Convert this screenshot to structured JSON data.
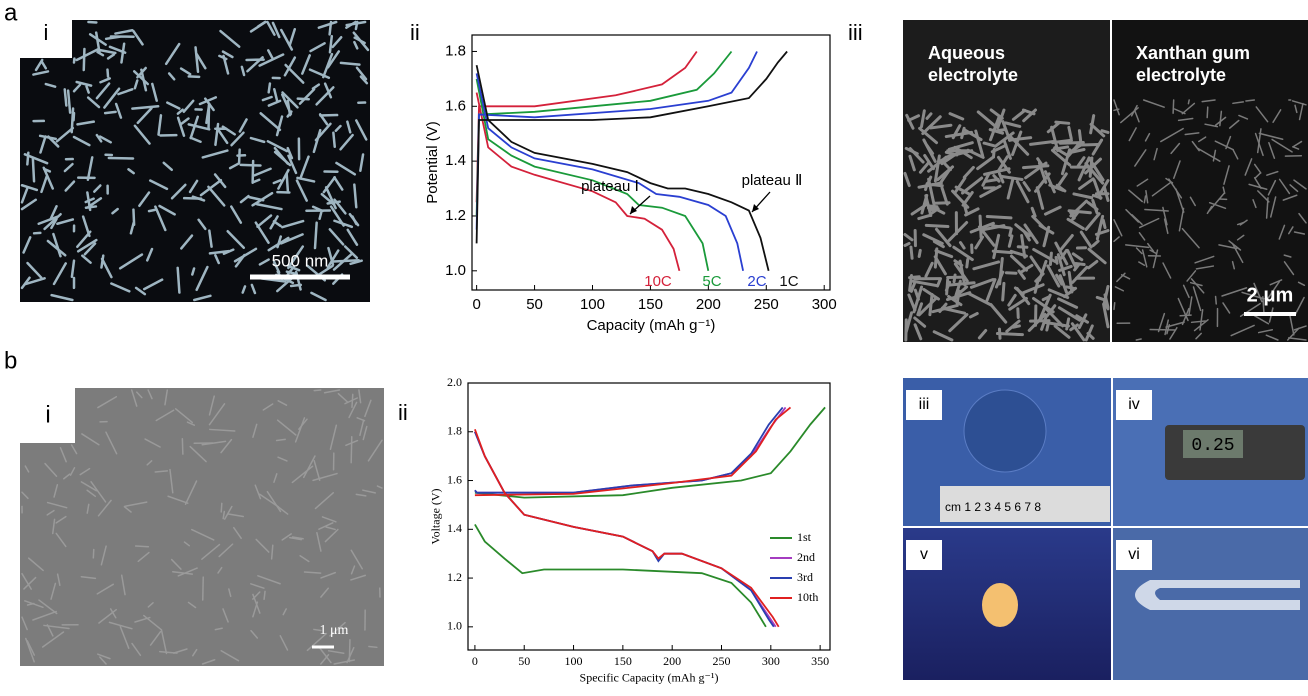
{
  "panels": {
    "a": {
      "label": "a",
      "i": {
        "label": "i",
        "scale_bar": "500 nm"
      },
      "ii": {
        "label": "ii"
      },
      "iii": {
        "label": "iii",
        "left_caption": [
          "Aqueous",
          "electrolyte"
        ],
        "right_caption": [
          "Xanthan gum",
          "electrolyte"
        ],
        "scale_bar": "2 μm"
      }
    },
    "b": {
      "label": "b",
      "i": {
        "label": "i",
        "scale_bar": "1 μm"
      },
      "ii": {
        "label": "ii"
      },
      "iii": {
        "label": "iii",
        "ruler": "cm  1   2   3   4   5   6   7   8"
      },
      "iv": {
        "label": "iv",
        "display": "0.25"
      },
      "v": {
        "label": "v"
      },
      "vi": {
        "label": "vi"
      }
    }
  },
  "chart_data": [
    {
      "type": "line",
      "ylabel": "Potential (V)",
      "xlabel": "Capacity (mAh g⁻¹)",
      "xlim": [
        -4,
        305
      ],
      "ylim": [
        0.93,
        1.86
      ],
      "xticks": [
        0,
        50,
        100,
        150,
        200,
        250,
        300
      ],
      "yticks": [
        {
          "value": 1.0,
          "label": "1.0"
        },
        {
          "value": 1.2,
          "label": "1.2"
        },
        {
          "value": 1.4,
          "label": "1.4"
        },
        {
          "value": 1.6,
          "label": "1.6"
        },
        {
          "value": 1.8,
          "label": "1.8"
        }
      ],
      "annotations": [
        "plateau Ⅰ",
        "plateau Ⅱ"
      ],
      "series": [
        {
          "name": "10C",
          "color": "#d4213a",
          "x": [
            0,
            2,
            50,
            120,
            160,
            180,
            190,
            null,
            0,
            10,
            30,
            50,
            100,
            120,
            130,
            145,
            160,
            170,
            175
          ],
          "values": [
            1.25,
            1.6,
            1.6,
            1.64,
            1.68,
            1.74,
            1.8,
            null,
            1.65,
            1.45,
            1.38,
            1.35,
            1.29,
            1.25,
            1.2,
            1.19,
            1.15,
            1.08,
            1.0
          ]
        },
        {
          "name": "5C",
          "color": "#1a9a3a",
          "x": [
            0,
            2,
            50,
            150,
            190,
            205,
            220,
            null,
            0,
            10,
            30,
            50,
            100,
            130,
            140,
            160,
            180,
            195,
            200
          ],
          "values": [
            1.2,
            1.57,
            1.58,
            1.62,
            1.66,
            1.72,
            1.8,
            null,
            1.7,
            1.48,
            1.42,
            1.38,
            1.33,
            1.28,
            1.24,
            1.23,
            1.2,
            1.1,
            1.0
          ]
        },
        {
          "name": "2C",
          "color": "#2a3fd1",
          "x": [
            0,
            2,
            50,
            150,
            200,
            220,
            235,
            242,
            null,
            0,
            10,
            30,
            50,
            100,
            140,
            155,
            175,
            200,
            215,
            225,
            230
          ],
          "values": [
            1.15,
            1.57,
            1.56,
            1.59,
            1.62,
            1.65,
            1.74,
            1.8,
            null,
            1.72,
            1.52,
            1.45,
            1.41,
            1.37,
            1.32,
            1.28,
            1.27,
            1.24,
            1.2,
            1.1,
            1.0
          ]
        },
        {
          "name": "1C",
          "color": "#111111",
          "x": [
            0,
            2,
            20,
            100,
            150,
            200,
            235,
            250,
            260,
            268,
            null,
            0,
            10,
            30,
            50,
            100,
            130,
            150,
            165,
            180,
            200,
            220,
            235,
            245,
            252
          ],
          "values": [
            1.1,
            1.55,
            1.55,
            1.55,
            1.56,
            1.6,
            1.63,
            1.7,
            1.76,
            1.8,
            null,
            1.75,
            1.55,
            1.47,
            1.43,
            1.39,
            1.36,
            1.32,
            1.3,
            1.3,
            1.28,
            1.25,
            1.22,
            1.12,
            1.0
          ]
        }
      ]
    },
    {
      "type": "line",
      "ylabel": "Voltage (V)",
      "xlabel": "Specific Capacity (mAh g⁻¹)",
      "xlim": [
        -7,
        360
      ],
      "ylim": [
        0.905,
        2.0
      ],
      "xticks": [
        0,
        50,
        100,
        150,
        200,
        250,
        300,
        350
      ],
      "yticks": [
        {
          "value": 1.0,
          "label": "1.0"
        },
        {
          "value": 1.2,
          "label": "1.2"
        },
        {
          "value": 1.4,
          "label": "1.4"
        },
        {
          "value": 1.6,
          "label": "1.6"
        },
        {
          "value": 1.8,
          "label": "1.8"
        },
        {
          "value": 2.0,
          "label": "2.0"
        }
      ],
      "legend": "right",
      "series": [
        {
          "name": "1st",
          "color": "#2a8a2a",
          "x": [
            0,
            50,
            150,
            200,
            270,
            300,
            320,
            340,
            355,
            null,
            0,
            10,
            30,
            48,
            70,
            150,
            230,
            260,
            280,
            295
          ],
          "values": [
            1.55,
            1.53,
            1.54,
            1.57,
            1.6,
            1.63,
            1.72,
            1.83,
            1.9,
            null,
            1.42,
            1.35,
            1.28,
            1.22,
            1.235,
            1.235,
            1.22,
            1.18,
            1.1,
            1.0
          ]
        },
        {
          "name": "2nd",
          "color": "#a43cc0",
          "x": [
            0,
            2,
            100,
            160,
            230,
            260,
            280,
            300,
            315,
            null,
            0,
            10,
            30,
            50,
            100,
            150,
            180,
            186,
            192,
            210,
            250,
            280,
            300,
            305
          ],
          "values": [
            1.56,
            1.55,
            1.55,
            1.58,
            1.6,
            1.63,
            1.7,
            1.82,
            1.9,
            null,
            1.8,
            1.7,
            1.55,
            1.46,
            1.41,
            1.37,
            1.31,
            1.28,
            1.3,
            1.3,
            1.24,
            1.15,
            1.03,
            1.0
          ]
        },
        {
          "name": "3rd",
          "color": "#2a3fb0",
          "x": [
            0,
            2,
            100,
            160,
            230,
            260,
            280,
            298,
            312,
            null,
            0,
            10,
            30,
            50,
            100,
            150,
            180,
            186,
            192,
            210,
            250,
            280,
            298,
            303
          ],
          "values": [
            1.56,
            1.55,
            1.55,
            1.58,
            1.6,
            1.63,
            1.71,
            1.83,
            1.9,
            null,
            1.8,
            1.7,
            1.55,
            1.46,
            1.41,
            1.37,
            1.31,
            1.27,
            1.3,
            1.3,
            1.24,
            1.15,
            1.03,
            1.0
          ]
        },
        {
          "name": "10th",
          "color": "#e02020",
          "x": [
            0,
            100,
            200,
            260,
            285,
            305,
            320,
            null,
            0,
            10,
            30,
            50,
            100,
            150,
            180,
            186,
            192,
            210,
            250,
            280,
            302,
            308
          ],
          "values": [
            1.54,
            1.545,
            1.59,
            1.62,
            1.72,
            1.85,
            1.9,
            null,
            1.81,
            1.7,
            1.55,
            1.46,
            1.41,
            1.37,
            1.31,
            1.28,
            1.3,
            1.3,
            1.24,
            1.16,
            1.04,
            1.0
          ]
        }
      ]
    }
  ]
}
